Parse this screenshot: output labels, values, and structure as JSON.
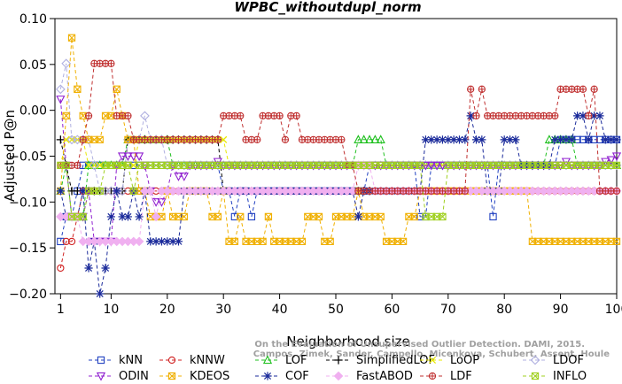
{
  "chart_data": {
    "type": "line",
    "title": "WPBC_withoutdupl_norm",
    "xlabel": "Neighborhood size",
    "ylabel": "Adjusted P@n",
    "xlim": [
      0,
      100
    ],
    "ylim": [
      -0.2,
      0.1
    ],
    "x_ticks": [
      1,
      10,
      20,
      30,
      40,
      50,
      60,
      70,
      80,
      90,
      100
    ],
    "y_ticks": [
      0.1,
      0.05,
      0.0,
      -0.05,
      -0.1,
      -0.15,
      -0.2
    ],
    "y_tick_labels": [
      "0.10",
      "0.05",
      "0.00",
      "−0.05",
      "−0.10",
      "−0.15",
      "−0.20"
    ],
    "grid": false,
    "legend_position": "bottom",
    "watermark": [
      "Campos, Zimek, Sander, Campello, Micenkova, Schubert, Assent, Houle",
      "On the Evaluation of Unsupervised Outlier Detection. DAMI, 2015."
    ],
    "series": [
      {
        "name": "kNN",
        "color": "#2040c0",
        "marker": "square",
        "runs": [
          [
            1,
            -0.143
          ],
          [
            2,
            -0.116
          ],
          [
            4,
            -0.088
          ],
          [
            5,
            -0.06
          ],
          [
            29,
            -0.06
          ],
          [
            30,
            -0.088
          ],
          [
            31,
            -0.088
          ],
          [
            32,
            -0.116
          ],
          [
            33,
            -0.088
          ],
          [
            34,
            -0.088
          ],
          [
            35,
            -0.116
          ],
          [
            36,
            -0.088
          ],
          [
            55,
            -0.088
          ],
          [
            56,
            -0.06
          ],
          [
            64,
            -0.06
          ],
          [
            65,
            -0.116
          ],
          [
            66,
            -0.116
          ],
          [
            67,
            -0.06
          ],
          [
            77,
            -0.06
          ],
          [
            78,
            -0.116
          ],
          [
            79,
            -0.06
          ],
          [
            89,
            -0.06
          ],
          [
            90,
            -0.032
          ],
          [
            100,
            -0.032
          ]
        ]
      },
      {
        "name": "kNNW",
        "color": "#d02020",
        "marker": "circle",
        "runs": [
          [
            1,
            -0.172
          ],
          [
            2,
            -0.143
          ],
          [
            3,
            -0.143
          ],
          [
            4,
            -0.116
          ],
          [
            5,
            -0.088
          ],
          [
            100,
            -0.088
          ]
        ]
      },
      {
        "name": "LOF",
        "color": "#20c020",
        "marker": "triangle-up",
        "runs": [
          [
            1,
            -0.088
          ],
          [
            2,
            -0.06
          ],
          [
            3,
            -0.116
          ],
          [
            5,
            -0.116
          ],
          [
            6,
            -0.06
          ],
          [
            12,
            -0.06
          ],
          [
            13,
            -0.032
          ],
          [
            20,
            -0.032
          ],
          [
            21,
            -0.06
          ],
          [
            53,
            -0.06
          ],
          [
            54,
            -0.032
          ],
          [
            58,
            -0.032
          ],
          [
            59,
            -0.06
          ],
          [
            87,
            -0.06
          ],
          [
            88,
            -0.032
          ],
          [
            92,
            -0.032
          ],
          [
            93,
            -0.06
          ],
          [
            100,
            -0.06
          ]
        ]
      },
      {
        "name": "SimplifiedLOF",
        "color": "#000000",
        "marker": "plus",
        "runs": [
          [
            1,
            -0.032
          ],
          [
            2,
            -0.06
          ],
          [
            3,
            -0.088
          ],
          [
            12,
            -0.088
          ],
          [
            13,
            -0.032
          ],
          [
            29,
            -0.032
          ],
          [
            30,
            -0.088
          ],
          [
            100,
            -0.088
          ]
        ]
      },
      {
        "name": "LoOP",
        "color": "#e8e800",
        "marker": "cross",
        "runs": [
          [
            1,
            -0.06
          ],
          [
            2,
            -0.032
          ],
          [
            5,
            -0.032
          ],
          [
            6,
            -0.06
          ],
          [
            14,
            -0.06
          ],
          [
            15,
            -0.032
          ],
          [
            30,
            -0.032
          ],
          [
            31,
            -0.06
          ],
          [
            100,
            -0.06
          ]
        ]
      },
      {
        "name": "LDOF",
        "color": "#b0b0e0",
        "marker": "diamond",
        "runs": [
          [
            1,
            0.023
          ],
          [
            2,
            0.051
          ],
          [
            3,
            -0.032
          ],
          [
            6,
            -0.032
          ],
          [
            7,
            -0.06
          ],
          [
            8,
            -0.088
          ],
          [
            13,
            -0.032
          ],
          [
            16,
            -0.006
          ],
          [
            17,
            -0.032
          ],
          [
            20,
            -0.06
          ],
          [
            100,
            -0.06
          ]
        ]
      },
      {
        "name": "ODIN",
        "color": "#9020d0",
        "marker": "triangle-down",
        "runs": [
          [
            1,
            0.012
          ],
          [
            2,
            -0.06
          ],
          [
            3,
            -0.116
          ],
          [
            5,
            -0.116
          ],
          [
            6,
            -0.088
          ],
          [
            7,
            -0.143
          ],
          [
            10,
            -0.143
          ],
          [
            11,
            -0.06
          ],
          [
            12,
            -0.05
          ],
          [
            16,
            -0.06
          ],
          [
            17,
            -0.088
          ],
          [
            18,
            -0.1
          ],
          [
            20,
            -0.088
          ],
          [
            21,
            -0.06
          ],
          [
            22,
            -0.072
          ],
          [
            24,
            -0.06
          ],
          [
            28,
            -0.06
          ],
          [
            29,
            -0.056
          ],
          [
            30,
            -0.06
          ],
          [
            90,
            -0.06
          ],
          [
            91,
            -0.056
          ],
          [
            92,
            -0.06
          ],
          [
            97,
            -0.06
          ],
          [
            98,
            -0.056
          ],
          [
            99,
            -0.054
          ],
          [
            100,
            -0.05
          ]
        ]
      },
      {
        "name": "KDEOS",
        "color": "#f0b000",
        "marker": "square-x",
        "runs": [
          [
            1,
            -0.088
          ],
          [
            2,
            -0.006
          ],
          [
            3,
            0.079
          ],
          [
            4,
            0.023
          ],
          [
            5,
            -0.006
          ],
          [
            6,
            -0.032
          ],
          [
            8,
            -0.032
          ],
          [
            9,
            -0.006
          ],
          [
            10,
            -0.006
          ],
          [
            11,
            0.023
          ],
          [
            12,
            -0.006
          ],
          [
            13,
            -0.032
          ],
          [
            15,
            -0.088
          ],
          [
            16,
            -0.088
          ],
          [
            17,
            -0.116
          ],
          [
            18,
            -0.116
          ],
          [
            20,
            -0.088
          ],
          [
            21,
            -0.116
          ],
          [
            23,
            -0.116
          ],
          [
            24,
            -0.088
          ],
          [
            27,
            -0.088
          ],
          [
            28,
            -0.116
          ],
          [
            29,
            -0.116
          ],
          [
            30,
            -0.088
          ],
          [
            31,
            -0.143
          ],
          [
            32,
            -0.143
          ],
          [
            33,
            -0.116
          ],
          [
            34,
            -0.143
          ],
          [
            37,
            -0.143
          ],
          [
            38,
            -0.116
          ],
          [
            39,
            -0.143
          ],
          [
            44,
            -0.143
          ],
          [
            45,
            -0.116
          ],
          [
            47,
            -0.116
          ],
          [
            48,
            -0.143
          ],
          [
            49,
            -0.143
          ],
          [
            50,
            -0.116
          ],
          [
            53,
            -0.116
          ],
          [
            54,
            -0.088
          ],
          [
            55,
            -0.116
          ],
          [
            58,
            -0.116
          ],
          [
            59,
            -0.143
          ],
          [
            62,
            -0.143
          ],
          [
            63,
            -0.116
          ],
          [
            64,
            -0.116
          ],
          [
            65,
            -0.088
          ],
          [
            84,
            -0.088
          ],
          [
            85,
            -0.143
          ],
          [
            100,
            -0.143
          ]
        ]
      },
      {
        "name": "COF",
        "color": "#1a2a9a",
        "marker": "asterisk",
        "runs": [
          [
            1,
            -0.088
          ],
          [
            2,
            -0.116
          ],
          [
            4,
            -0.116
          ],
          [
            5,
            -0.088
          ],
          [
            6,
            -0.172
          ],
          [
            7,
            -0.143
          ],
          [
            8,
            -0.2
          ],
          [
            9,
            -0.172
          ],
          [
            10,
            -0.116
          ],
          [
            11,
            -0.088
          ],
          [
            12,
            -0.116
          ],
          [
            13,
            -0.116
          ],
          [
            14,
            -0.088
          ],
          [
            15,
            -0.116
          ],
          [
            16,
            -0.088
          ],
          [
            17,
            -0.143
          ],
          [
            22,
            -0.143
          ],
          [
            23,
            -0.088
          ],
          [
            53,
            -0.088
          ],
          [
            54,
            -0.116
          ],
          [
            55,
            -0.088
          ],
          [
            65,
            -0.088
          ],
          [
            66,
            -0.032
          ],
          [
            73,
            -0.032
          ],
          [
            74,
            -0.006
          ],
          [
            75,
            -0.032
          ],
          [
            76,
            -0.032
          ],
          [
            77,
            -0.088
          ],
          [
            79,
            -0.088
          ],
          [
            80,
            -0.032
          ],
          [
            82,
            -0.032
          ],
          [
            83,
            -0.06
          ],
          [
            88,
            -0.06
          ],
          [
            89,
            -0.032
          ],
          [
            92,
            -0.032
          ],
          [
            93,
            -0.006
          ],
          [
            95,
            -0.032
          ],
          [
            96,
            -0.006
          ],
          [
            97,
            -0.006
          ],
          [
            98,
            -0.032
          ],
          [
            100,
            -0.032
          ]
        ]
      },
      {
        "name": "FastABOD",
        "color": "#f0b0f0",
        "marker": "diamond-filled",
        "runs": [
          [
            1,
            -0.116
          ],
          [
            2,
            -0.116
          ],
          [
            4,
            -0.116
          ],
          [
            5,
            -0.143
          ],
          [
            15,
            -0.143
          ],
          [
            16,
            -0.088
          ],
          [
            17,
            -0.088
          ],
          [
            18,
            -0.116
          ],
          [
            19,
            -0.088
          ],
          [
            53,
            -0.088
          ],
          [
            54,
            -0.06
          ],
          [
            56,
            -0.06
          ],
          [
            57,
            -0.088
          ],
          [
            100,
            -0.088
          ]
        ]
      },
      {
        "name": "LDF",
        "color": "#c03030",
        "marker": "circle-plus",
        "runs": [
          [
            1,
            -0.06
          ],
          [
            2,
            -0.06
          ],
          [
            4,
            -0.06
          ],
          [
            5,
            -0.032
          ],
          [
            6,
            -0.006
          ],
          [
            7,
            0.051
          ],
          [
            10,
            0.051
          ],
          [
            11,
            -0.006
          ],
          [
            13,
            -0.006
          ],
          [
            14,
            -0.032
          ],
          [
            29,
            -0.032
          ],
          [
            30,
            -0.006
          ],
          [
            33,
            -0.006
          ],
          [
            34,
            -0.032
          ],
          [
            36,
            -0.032
          ],
          [
            37,
            -0.006
          ],
          [
            40,
            -0.006
          ],
          [
            41,
            -0.032
          ],
          [
            42,
            -0.006
          ],
          [
            43,
            -0.006
          ],
          [
            44,
            -0.032
          ],
          [
            51,
            -0.032
          ],
          [
            52,
            -0.06
          ],
          [
            53,
            -0.06
          ],
          [
            54,
            -0.088
          ],
          [
            73,
            -0.088
          ],
          [
            74,
            0.023
          ],
          [
            75,
            -0.006
          ],
          [
            76,
            0.023
          ],
          [
            77,
            -0.006
          ],
          [
            89,
            -0.006
          ],
          [
            90,
            0.023
          ],
          [
            94,
            0.023
          ],
          [
            95,
            -0.006
          ],
          [
            96,
            0.023
          ],
          [
            97,
            -0.088
          ],
          [
            100,
            -0.088
          ]
        ]
      },
      {
        "name": "INFLO",
        "color": "#a0d020",
        "marker": "square-x",
        "runs": [
          [
            1,
            -0.06
          ],
          [
            2,
            -0.06
          ],
          [
            3,
            -0.116
          ],
          [
            5,
            -0.116
          ],
          [
            6,
            -0.088
          ],
          [
            8,
            -0.088
          ],
          [
            9,
            -0.06
          ],
          [
            13,
            -0.06
          ],
          [
            14,
            -0.088
          ],
          [
            15,
            -0.06
          ],
          [
            65,
            -0.06
          ],
          [
            66,
            -0.116
          ],
          [
            69,
            -0.116
          ],
          [
            70,
            -0.06
          ],
          [
            100,
            -0.06
          ]
        ]
      }
    ]
  }
}
